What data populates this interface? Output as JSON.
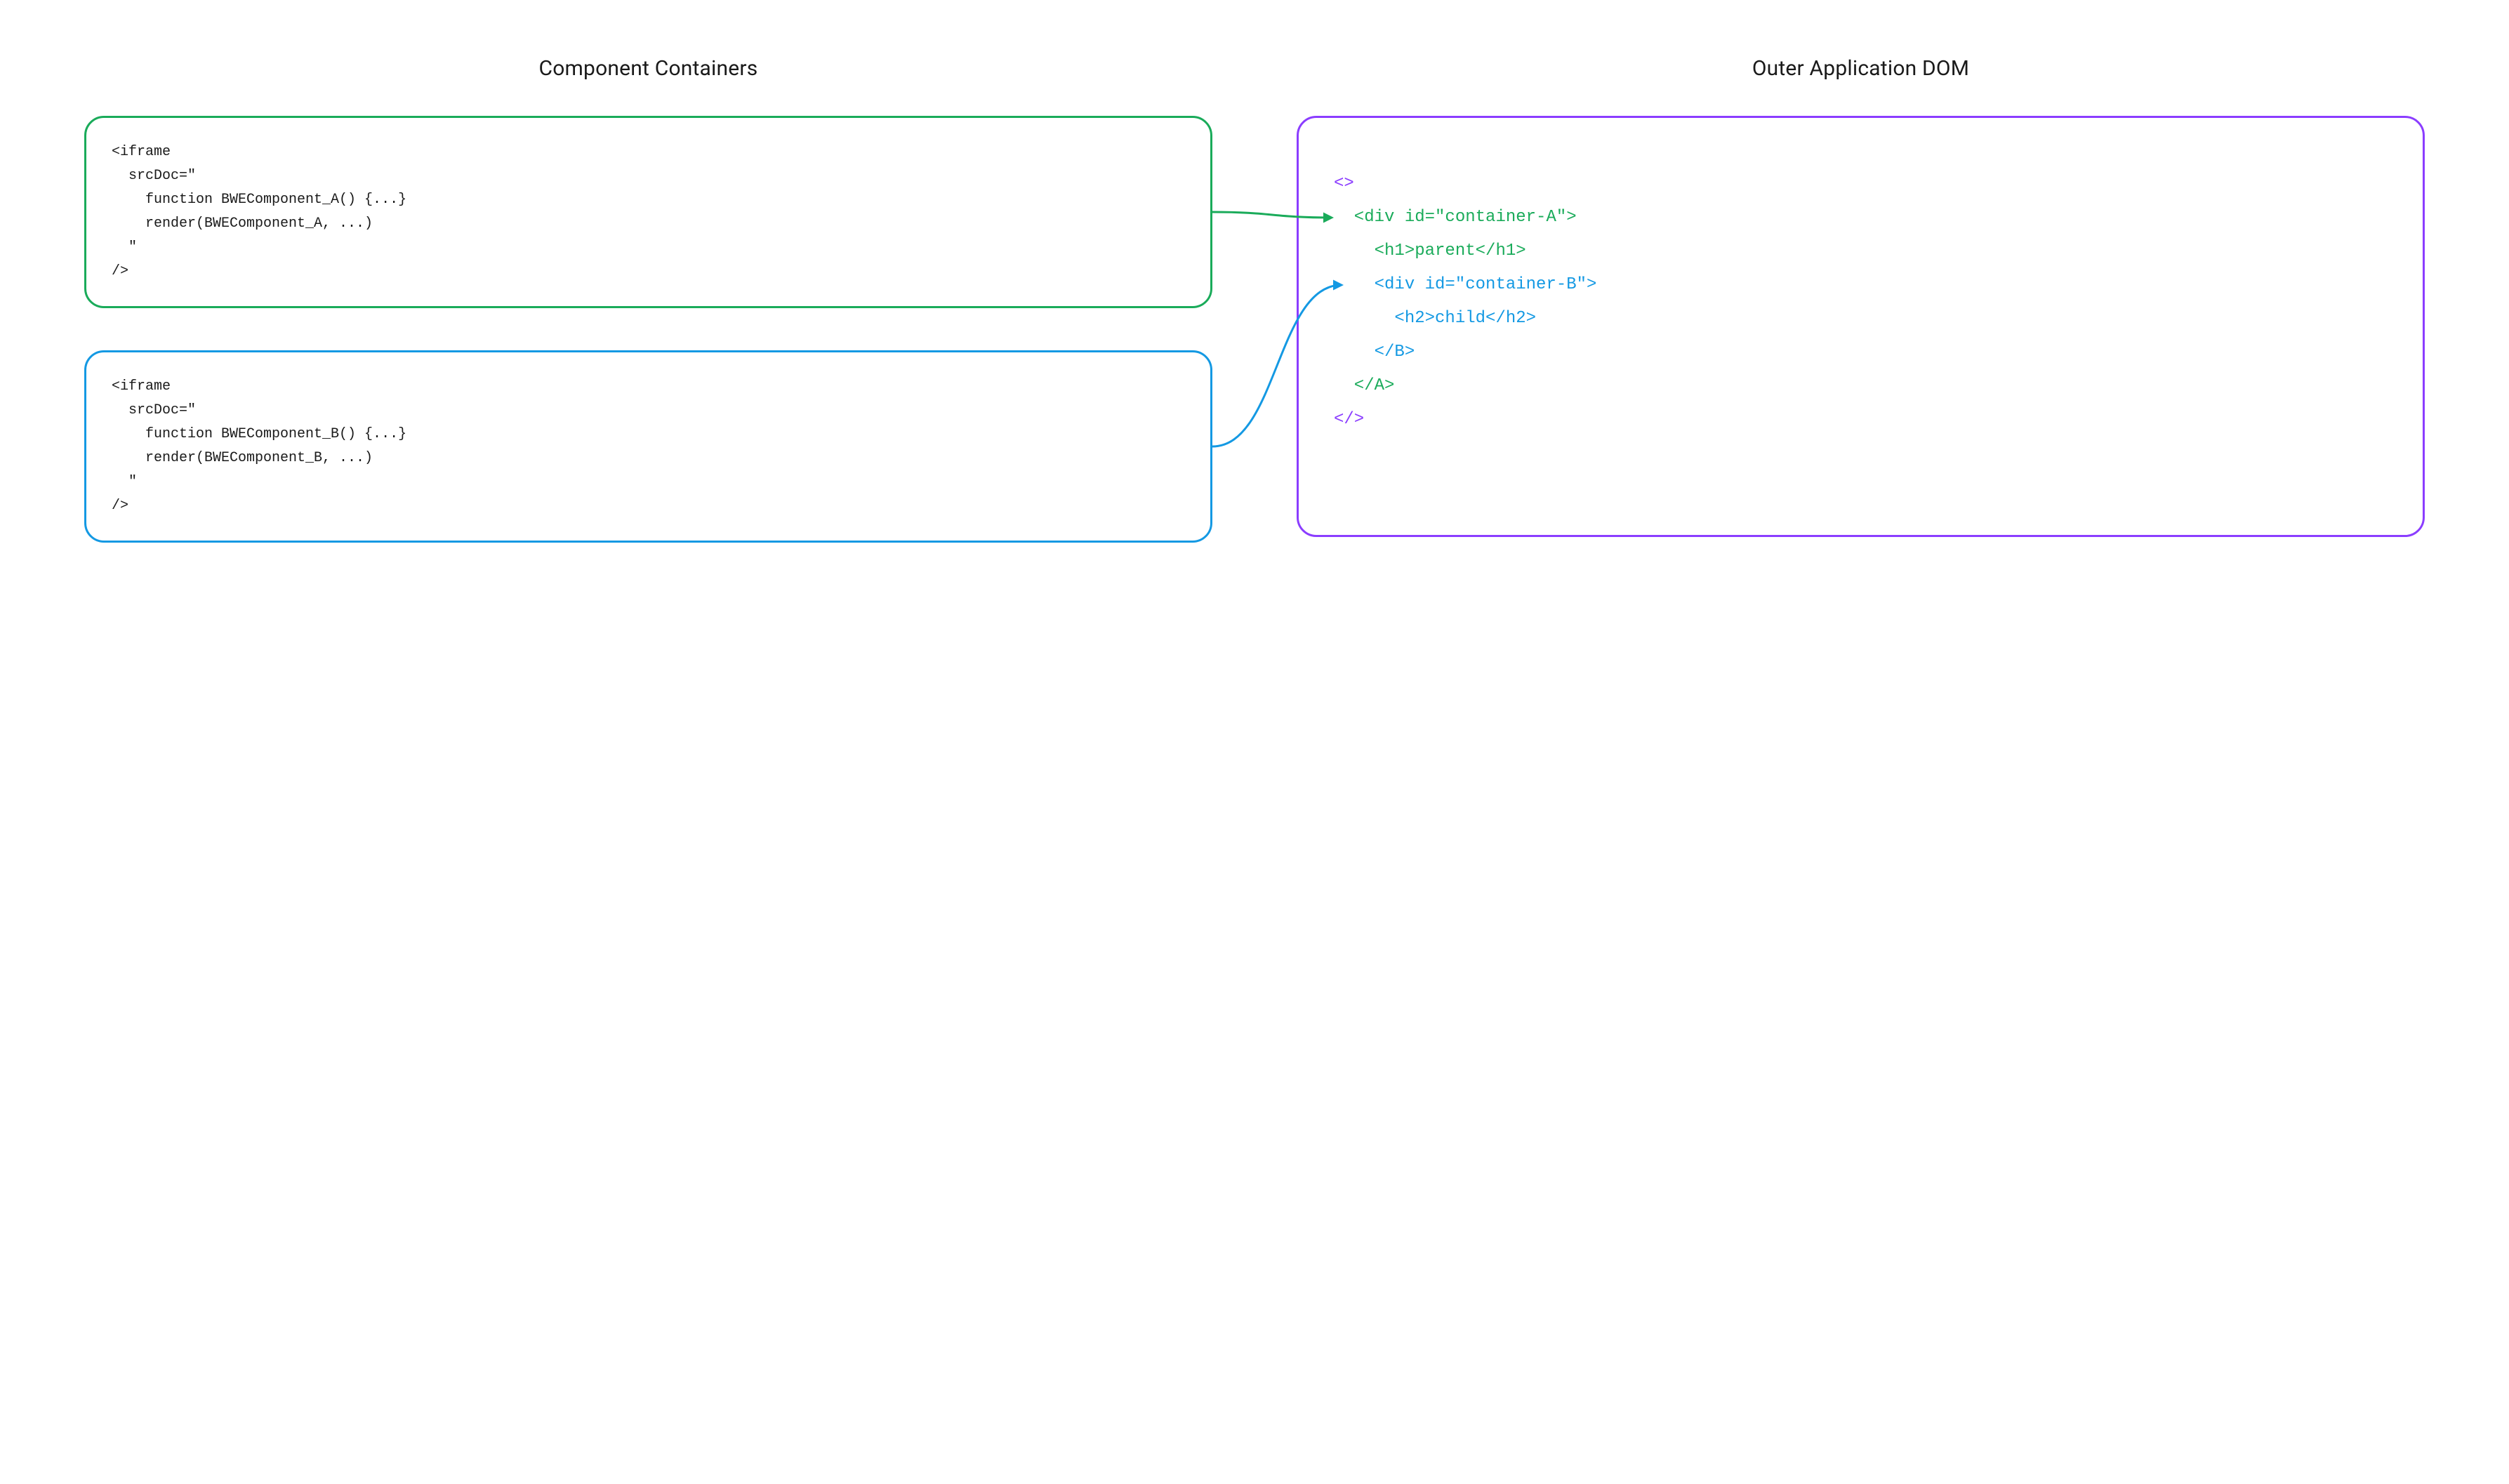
{
  "headings": {
    "left": "Component Containers",
    "right": "Outer Application DOM"
  },
  "boxA": {
    "border_color": "#1aab5a",
    "lines": [
      "<iframe",
      "  srcDoc=\"",
      "    function BWEComponent_A() {...}",
      "    render(BWEComponent_A, ...)",
      "  \"",
      "/>"
    ]
  },
  "boxB": {
    "border_color": "#1499e3",
    "lines": [
      "<iframe",
      "  srcDoc=\"",
      "    function BWEComponent_B() {...}",
      "    render(BWEComponent_B, ...)",
      "  \"",
      "/>"
    ]
  },
  "domBox": {
    "border_color": "#8b3dff",
    "lines": [
      {
        "text": "<>",
        "indent": 0,
        "color": "purple"
      },
      {
        "text": "<div id=\"container-A\">",
        "indent": 1,
        "color": "green"
      },
      {
        "text": "<h1>parent</h1>",
        "indent": 2,
        "color": "green"
      },
      {
        "text": "<div id=\"container-B\">",
        "indent": 2,
        "color": "blue"
      },
      {
        "text": "<h2>child</h2>",
        "indent": 3,
        "color": "blue"
      },
      {
        "text": "</B>",
        "indent": 2,
        "color": "blue"
      },
      {
        "text": "</A>",
        "indent": 1,
        "color": "green"
      },
      {
        "text": "</>",
        "indent": 0,
        "color": "purple"
      }
    ],
    "indent_unit": "  "
  },
  "colors": {
    "green": "#1aab5a",
    "blue": "#1499e3",
    "purple": "#8b3dff",
    "text": "#1a1a1a",
    "bg": "#ffffff"
  },
  "layout": {
    "connector_stroke_width": 3
  }
}
